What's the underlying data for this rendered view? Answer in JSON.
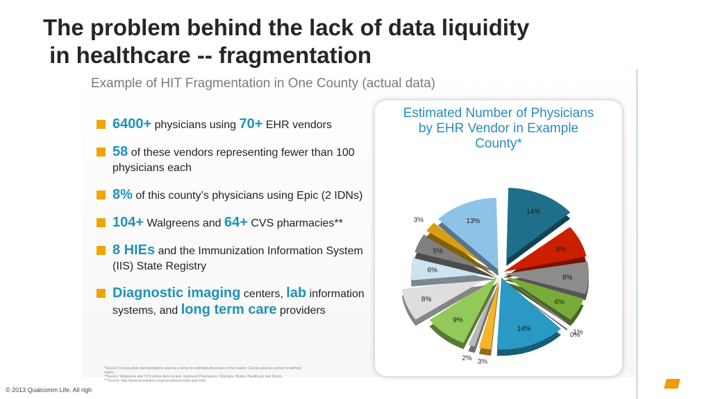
{
  "title": {
    "line1": "The problem behind the lack of data liquidity",
    "line2": " in healthcare -- fragmentation"
  },
  "subtitle": "Example of HIT Fragmentation in One County (actual data)",
  "bullets": [
    {
      "parts": [
        {
          "t": "6400+",
          "hl": true
        },
        {
          "t": " physicians using "
        },
        {
          "t": "70+",
          "hl": true
        },
        {
          "t": " EHR vendors"
        }
      ]
    },
    {
      "parts": [
        {
          "t": "58",
          "hl": true
        },
        {
          "t": " of these vendors representing fewer than 100 physicians each"
        }
      ]
    },
    {
      "parts": [
        {
          "t": "8%",
          "hl": true
        },
        {
          "t": " of this county’s physicians using Epic (2 IDNs)"
        }
      ]
    },
    {
      "parts": [
        {
          "t": "104+",
          "hl": true
        },
        {
          "t": "  Walgreens and "
        },
        {
          "t": "64+",
          "hl": true
        },
        {
          "t": " CVS pharmacies**"
        }
      ]
    },
    {
      "parts": [
        {
          "t": "8 HIEs",
          "hl": true
        },
        {
          "t": " and the Immunization Information System (IIS) State Registry"
        }
      ]
    },
    {
      "parts": [
        {
          "t": "Diagnostic imaging",
          "hl": true
        },
        {
          "t": " centers, "
        },
        {
          "t": "lab",
          "hl": true
        },
        {
          "t": " information systems, and "
        },
        {
          "t": "long term care",
          "hl": true
        },
        {
          "t": " providers"
        }
      ]
    }
  ],
  "bullet_color": "#f0a500",
  "highlight_color": "#1f92b8",
  "chart_card": {
    "title_line1": "Estimated Number of Physicians",
    "title_line2": "by EHR Vendor in Example",
    "title_line3": "County*"
  },
  "chart_data": {
    "type": "pie",
    "title": "Estimated Number of Physicians by EHR Vendor in Example County*",
    "slices": [
      {
        "label": "14%",
        "value": 14,
        "color": "#1f6f8b",
        "exploded": true
      },
      {
        "label": "8%",
        "value": 8,
        "color": "#cc1f00",
        "exploded": false
      },
      {
        "label": "8%",
        "value": 8,
        "color": "#8c8c8c",
        "exploded": false
      },
      {
        "label": "6%",
        "value": 6,
        "color": "#7aab3a",
        "exploded": false
      },
      {
        "label": "1%",
        "value": 1,
        "color": "#9b7fc0",
        "exploded": false
      },
      {
        "label": "0%",
        "value": 0.4,
        "color": "#2d5f8a",
        "exploded": false
      },
      {
        "label": "14%",
        "value": 14,
        "color": "#2a99c4",
        "exploded": false
      },
      {
        "label": "3%",
        "value": 3,
        "color": "#f4b52a",
        "exploded": false
      },
      {
        "label": "2%",
        "value": 2,
        "color": "#b8b8b8",
        "exploded": false
      },
      {
        "label": "9%",
        "value": 9,
        "color": "#93c95a",
        "exploded": false
      },
      {
        "label": "8%",
        "value": 8,
        "color": "#dedede",
        "exploded": true
      },
      {
        "label": "6%",
        "value": 6,
        "color": "#cde3ef",
        "exploded": false
      },
      {
        "label": "5%",
        "value": 5,
        "color": "#808080",
        "exploded": false
      },
      {
        "label": "3%",
        "value": 3,
        "color": "#d8a010",
        "exploded": false
      },
      {
        "label": "13%",
        "value": 13,
        "color": "#8ec3e8",
        "exploded": false
      }
    ]
  },
  "footnote": {
    "line1": "*Source: Census-style representations used as a proxy for estimate physicians in the county. County used as a proxy for defined region.",
    "line2": "**Source: Walgreens and CVS online store locator, represent Pharmacies, Clinicians, Books, Healthcare and Stores",
    "line3": "***Source: http://www.surveillance.org/surveillance/state-data.html"
  },
  "copyright": "© 2013 Qualcomm Life. All righ",
  "brand_color": "#f39a00"
}
